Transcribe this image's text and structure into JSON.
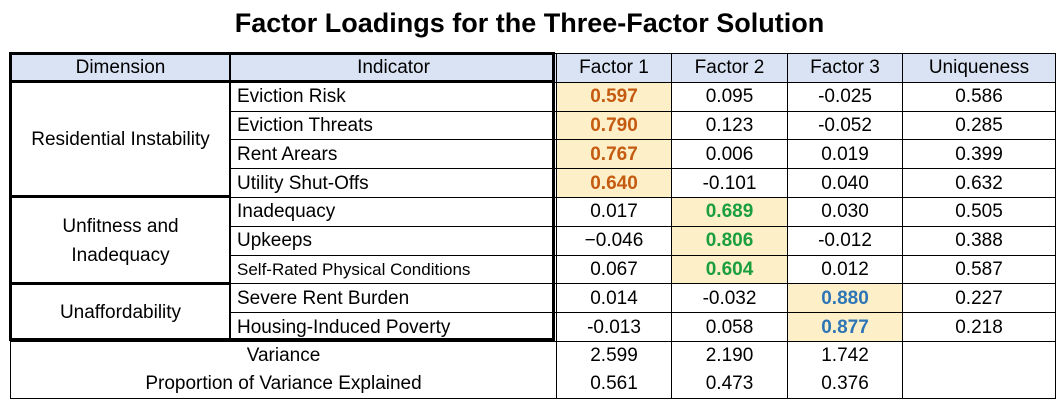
{
  "title": "Factor Loadings for the Three-Factor Solution",
  "headers": [
    "Dimension",
    "Indicator",
    "Factor 1",
    "Factor 2",
    "Factor 3",
    "Uniqueness"
  ],
  "groups": [
    {
      "dimension": "Residential Instability",
      "rows": [
        {
          "indicator": "Eviction Risk",
          "f1": "0.597",
          "f2": "0.095",
          "f3": "-0.025",
          "u": "0.586"
        },
        {
          "indicator": "Eviction Threats",
          "f1": "0.790",
          "f2": "0.123",
          "f3": "-0.052",
          "u": "0.285"
        },
        {
          "indicator": "Rent Arears",
          "f1": "0.767",
          "f2": "0.006",
          "f3": "0.019",
          "u": "0.399"
        },
        {
          "indicator": "Utility Shut-Offs",
          "f1": "0.640",
          "f2": "-0.101",
          "f3": "0.040",
          "u": "0.632"
        }
      ]
    },
    {
      "dimension": "Unfitness and Inadequacy",
      "rows": [
        {
          "indicator": "Inadequacy",
          "f1": "0.017",
          "f2": "0.689",
          "f3": "0.030",
          "u": "0.505"
        },
        {
          "indicator": "Upkeeps",
          "f1": "−0.046",
          "f2": "0.806",
          "f3": "-0.012",
          "u": "0.388"
        },
        {
          "indicator": "Self-Rated Physical Conditions",
          "f1": "0.067",
          "f2": "0.604",
          "f3": "0.012",
          "u": "0.587"
        }
      ]
    },
    {
      "dimension": "Unaffordability",
      "rows": [
        {
          "indicator": "Severe Rent Burden",
          "f1": "0.014",
          "f2": "-0.032",
          "f3": "0.880",
          "u": "0.227"
        },
        {
          "indicator": "Housing-Induced Poverty",
          "f1": "-0.013",
          "f2": "0.058",
          "f3": "0.877",
          "u": "0.218"
        }
      ]
    }
  ],
  "footer": [
    {
      "label": "Variance",
      "f1": "2.599",
      "f2": "2.190",
      "f3": "1.742"
    },
    {
      "label": "Proportion of Variance Explained",
      "f1": "0.561",
      "f2": "0.473",
      "f3": "0.376"
    }
  ],
  "colors": {
    "header_bg": "#dae3f3",
    "highlight_bg": "#fdf0c8",
    "factor1": "#c55a11",
    "factor2": "#1a9e3e",
    "factor3": "#2e75b6"
  }
}
